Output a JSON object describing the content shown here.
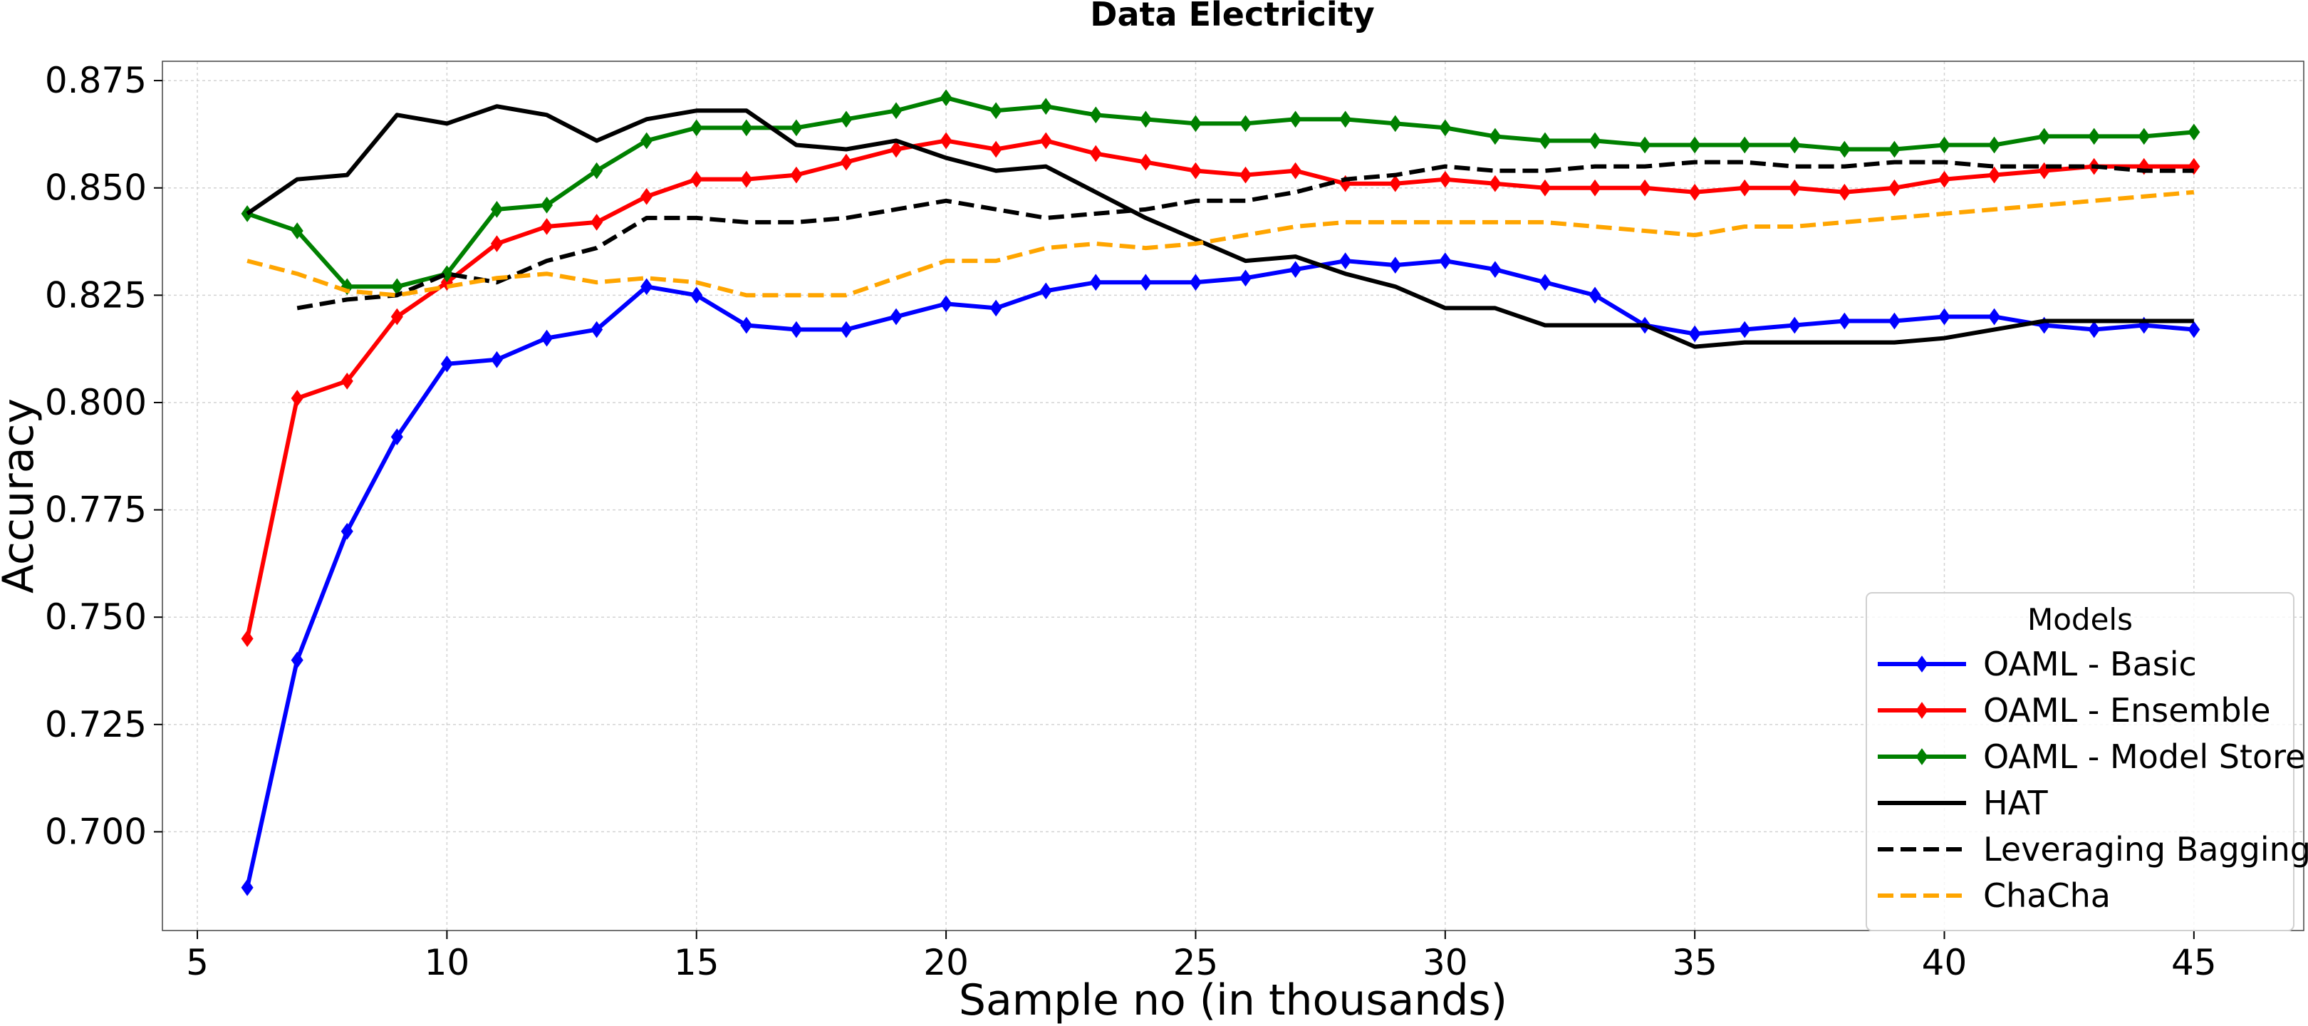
{
  "chart_data": {
    "type": "line",
    "title": "Data Electricity",
    "xlabel": "Sample no (in thousands)",
    "ylabel": "Accuracy",
    "xlim": [
      4.3,
      47.2
    ],
    "ylim": [
      0.677,
      0.8795
    ],
    "xticks": [
      5,
      10,
      15,
      20,
      25,
      30,
      35,
      40,
      45
    ],
    "yticks": [
      0.7,
      0.725,
      0.75,
      0.775,
      0.8,
      0.825,
      0.85,
      0.875
    ],
    "ytick_labels": [
      "0.700",
      "0.725",
      "0.750",
      "0.775",
      "0.800",
      "0.825",
      "0.850",
      "0.875"
    ],
    "grid": true,
    "legend": {
      "title": "Models",
      "position": "bottom-right"
    },
    "series": [
      {
        "name": "OAML - Basic",
        "color": "#0000ff",
        "style": "solid",
        "marker": "diamond",
        "x": [
          6,
          7,
          8,
          9,
          10,
          11,
          12,
          13,
          14,
          15,
          16,
          17,
          18,
          19,
          20,
          21,
          22,
          23,
          24,
          25,
          26,
          27,
          28,
          29,
          30,
          31,
          32,
          33,
          34,
          35,
          36,
          37,
          38,
          39,
          40,
          41,
          42,
          43,
          44,
          45
        ],
        "y": [
          0.687,
          0.74,
          0.77,
          0.792,
          0.809,
          0.81,
          0.815,
          0.817,
          0.827,
          0.825,
          0.818,
          0.817,
          0.817,
          0.82,
          0.823,
          0.822,
          0.826,
          0.828,
          0.828,
          0.828,
          0.829,
          0.831,
          0.833,
          0.832,
          0.833,
          0.831,
          0.828,
          0.825,
          0.818,
          0.816,
          0.817,
          0.818,
          0.819,
          0.819,
          0.82,
          0.82,
          0.818,
          0.817,
          0.818,
          0.817
        ]
      },
      {
        "name": "OAML - Ensemble",
        "color": "#ff0000",
        "style": "solid",
        "marker": "diamond",
        "x": [
          6,
          7,
          8,
          9,
          10,
          11,
          12,
          13,
          14,
          15,
          16,
          17,
          18,
          19,
          20,
          21,
          22,
          23,
          24,
          25,
          26,
          27,
          28,
          29,
          30,
          31,
          32,
          33,
          34,
          35,
          36,
          37,
          38,
          39,
          40,
          41,
          42,
          43,
          44,
          45
        ],
        "y": [
          0.745,
          0.801,
          0.805,
          0.82,
          0.828,
          0.837,
          0.841,
          0.842,
          0.848,
          0.852,
          0.852,
          0.853,
          0.856,
          0.859,
          0.861,
          0.859,
          0.861,
          0.858,
          0.856,
          0.854,
          0.853,
          0.854,
          0.851,
          0.851,
          0.852,
          0.851,
          0.85,
          0.85,
          0.85,
          0.849,
          0.85,
          0.85,
          0.849,
          0.85,
          0.852,
          0.853,
          0.854,
          0.855,
          0.855,
          0.855
        ]
      },
      {
        "name": "OAML - Model Store",
        "color": "#008000",
        "style": "solid",
        "marker": "diamond",
        "x": [
          6,
          7,
          8,
          9,
          10,
          11,
          12,
          13,
          14,
          15,
          16,
          17,
          18,
          19,
          20,
          21,
          22,
          23,
          24,
          25,
          26,
          27,
          28,
          29,
          30,
          31,
          32,
          33,
          34,
          35,
          36,
          37,
          38,
          39,
          40,
          41,
          42,
          43,
          44,
          45
        ],
        "y": [
          0.844,
          0.84,
          0.827,
          0.827,
          0.83,
          0.845,
          0.846,
          0.854,
          0.861,
          0.864,
          0.864,
          0.864,
          0.866,
          0.868,
          0.871,
          0.868,
          0.869,
          0.867,
          0.866,
          0.865,
          0.865,
          0.866,
          0.866,
          0.865,
          0.864,
          0.862,
          0.861,
          0.861,
          0.86,
          0.86,
          0.86,
          0.86,
          0.859,
          0.859,
          0.86,
          0.86,
          0.862,
          0.862,
          0.862,
          0.863
        ]
      },
      {
        "name": "HAT",
        "color": "#000000",
        "style": "solid",
        "marker": "none",
        "x": [
          6,
          7,
          8,
          9,
          10,
          11,
          12,
          13,
          14,
          15,
          16,
          17,
          18,
          19,
          20,
          21,
          22,
          23,
          24,
          25,
          26,
          27,
          28,
          29,
          30,
          31,
          32,
          33,
          34,
          35,
          36,
          37,
          38,
          39,
          40,
          41,
          42,
          43,
          44,
          45
        ],
        "y": [
          0.844,
          0.852,
          0.853,
          0.867,
          0.865,
          0.869,
          0.867,
          0.861,
          0.866,
          0.868,
          0.868,
          0.86,
          0.859,
          0.861,
          0.857,
          0.854,
          0.855,
          0.849,
          0.843,
          0.838,
          0.833,
          0.834,
          0.83,
          0.827,
          0.822,
          0.822,
          0.818,
          0.818,
          0.818,
          0.813,
          0.814,
          0.814,
          0.814,
          0.814,
          0.815,
          0.817,
          0.819,
          0.819,
          0.819,
          0.819
        ]
      },
      {
        "name": "Leveraging Bagging",
        "color": "#000000",
        "style": "dashed",
        "marker": "none",
        "x": [
          7,
          8,
          9,
          10,
          11,
          12,
          13,
          14,
          15,
          16,
          17,
          18,
          19,
          20,
          21,
          22,
          23,
          24,
          25,
          26,
          27,
          28,
          29,
          30,
          31,
          32,
          33,
          34,
          35,
          36,
          37,
          38,
          39,
          40,
          41,
          42,
          43,
          44,
          45
        ],
        "y": [
          0.822,
          0.824,
          0.825,
          0.83,
          0.828,
          0.833,
          0.836,
          0.843,
          0.843,
          0.842,
          0.842,
          0.843,
          0.845,
          0.847,
          0.845,
          0.843,
          0.844,
          0.845,
          0.847,
          0.847,
          0.849,
          0.852,
          0.853,
          0.855,
          0.854,
          0.854,
          0.855,
          0.855,
          0.856,
          0.856,
          0.855,
          0.855,
          0.856,
          0.856,
          0.855,
          0.855,
          0.855,
          0.854,
          0.854
        ]
      },
      {
        "name": "ChaCha",
        "color": "#ffa500",
        "style": "dashed",
        "marker": "none",
        "x": [
          6,
          7,
          8,
          9,
          10,
          11,
          12,
          13,
          14,
          15,
          16,
          17,
          18,
          19,
          20,
          21,
          22,
          23,
          24,
          25,
          26,
          27,
          28,
          29,
          30,
          31,
          32,
          33,
          34,
          35,
          36,
          37,
          38,
          39,
          40,
          41,
          42,
          43,
          44,
          45
        ],
        "y": [
          0.833,
          0.83,
          0.826,
          0.825,
          0.827,
          0.829,
          0.83,
          0.828,
          0.829,
          0.828,
          0.825,
          0.825,
          0.825,
          0.829,
          0.833,
          0.833,
          0.836,
          0.837,
          0.836,
          0.837,
          0.839,
          0.841,
          0.842,
          0.842,
          0.842,
          0.842,
          0.842,
          0.841,
          0.84,
          0.839,
          0.841,
          0.841,
          0.842,
          0.843,
          0.844,
          0.845,
          0.846,
          0.847,
          0.848,
          0.849
        ]
      }
    ]
  }
}
